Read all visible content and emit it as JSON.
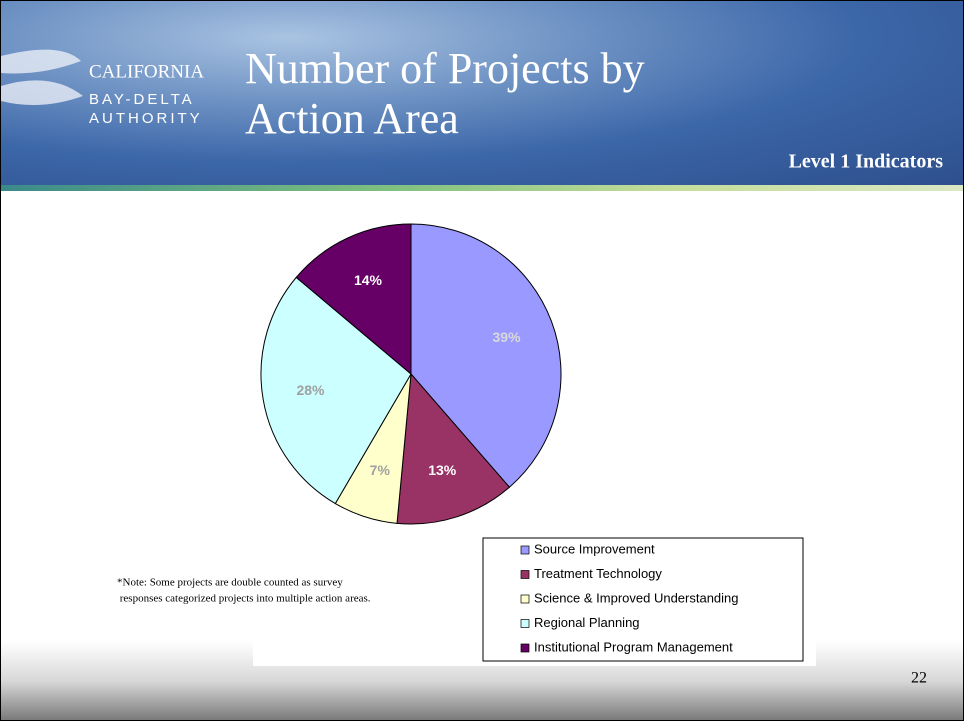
{
  "header": {
    "logo": [
      "CALIFORNIA",
      "BAY-DELTA",
      "AUTHORITY"
    ],
    "title": [
      "Number of Projects by",
      "Action Area"
    ],
    "subtitle": "Level 1 Indicators"
  },
  "chart_data": {
    "type": "pie",
    "categories": [
      "Source Improvement",
      "Treatment Technology",
      "Science & Improved Understanding",
      "Regional Planning",
      "Institutional Program Management"
    ],
    "values": [
      39,
      13,
      7,
      28,
      14
    ],
    "value_labels": [
      "39%",
      "13%",
      "7%",
      "28%",
      "14%"
    ],
    "colors": [
      "#9999ff",
      "#993366",
      "#ffffcc",
      "#ccffff",
      "#660066"
    ],
    "legend": "bottom-right"
  },
  "note": [
    "*Note:  Some projects are double counted as survey",
    " responses categorized projects into multiple action areas."
  ],
  "page_number": "22"
}
